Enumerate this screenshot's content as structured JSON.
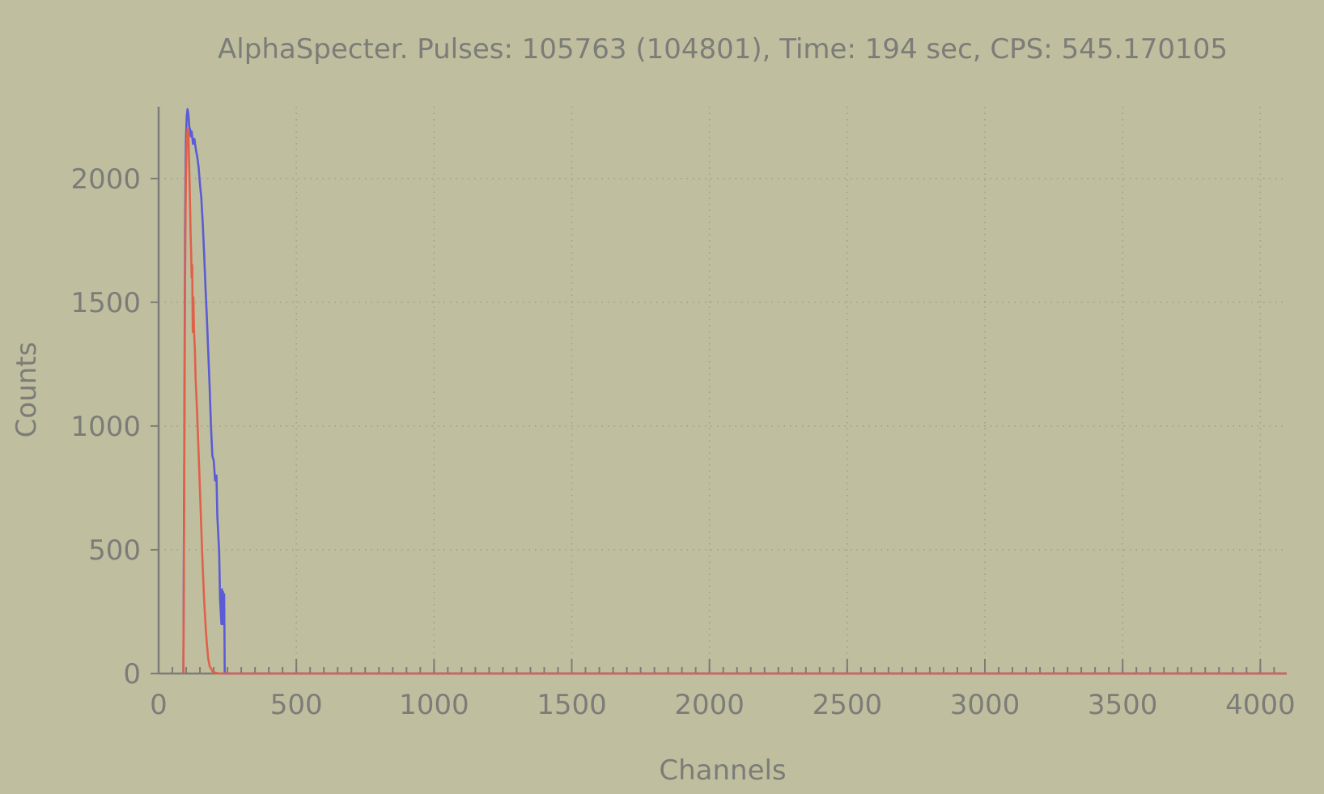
{
  "colors": {
    "background": "#bfbf9f",
    "axis": "#7c7c78",
    "grid": "#9e9e84",
    "text": "#7c7c78"
  },
  "chart_data": {
    "type": "line",
    "title": "AlphaSpecter. Pulses: 105763 (104801), Time: 194 sec, CPS: 545.170105",
    "xlabel": "Channels",
    "ylabel": "Counts",
    "xlim": [
      0,
      4096
    ],
    "ylim": [
      0,
      2290
    ],
    "xticks": [
      0,
      500,
      1000,
      1500,
      2000,
      2500,
      3000,
      3500,
      4000
    ],
    "yticks": [
      0,
      500,
      1000,
      1500,
      2000
    ],
    "x_minor_step": 50,
    "grid": true,
    "legend": "none",
    "series": [
      {
        "color": "#5b5bd6",
        "x": [
          90,
          93,
          96,
          99,
          102,
          105,
          108,
          111,
          114,
          117,
          120,
          125,
          130,
          135,
          140,
          145,
          150,
          155,
          160,
          165,
          170,
          175,
          180,
          185,
          190,
          195,
          200,
          205,
          210,
          213,
          218,
          220,
          223,
          228,
          230,
          232,
          234,
          236,
          238,
          240,
          242,
          244,
          246,
          248,
          250,
          252,
          254,
          256,
          258,
          260,
          262,
          280,
          400,
          1000,
          2000,
          3000,
          4096
        ],
        "y": [
          0,
          900,
          1800,
          2150,
          2250,
          2280,
          2260,
          2210,
          2200,
          2170,
          2190,
          2140,
          2160,
          2120,
          2090,
          2050,
          1980,
          1920,
          1820,
          1700,
          1560,
          1440,
          1300,
          1160,
          1000,
          880,
          860,
          780,
          800,
          640,
          530,
          480,
          300,
          200,
          340,
          200,
          330,
          200,
          320,
          0,
          0,
          0,
          0,
          0,
          0,
          0,
          0,
          0,
          0,
          0,
          0,
          0,
          0,
          0,
          0,
          0,
          0
        ]
      },
      {
        "color": "#e0604a",
        "x": [
          90,
          93,
          96,
          99,
          102,
          105,
          108,
          111,
          114,
          116,
          118,
          120,
          122,
          124,
          126,
          128,
          130,
          132,
          134,
          136,
          140,
          145,
          150,
          155,
          160,
          165,
          170,
          175,
          180,
          185,
          190,
          195,
          200,
          210,
          220,
          230,
          240,
          250,
          260,
          280,
          400,
          1000,
          2000,
          3000,
          4096
        ],
        "y": [
          0,
          800,
          1600,
          2000,
          2150,
          2200,
          2180,
          2050,
          1900,
          1780,
          1700,
          1600,
          1650,
          1380,
          1520,
          1400,
          1350,
          1300,
          1200,
          1150,
          1050,
          900,
          750,
          580,
          430,
          300,
          200,
          120,
          60,
          30,
          20,
          10,
          5,
          2,
          0,
          0,
          0,
          0,
          0,
          0,
          0,
          0,
          0,
          0,
          0
        ]
      }
    ]
  }
}
